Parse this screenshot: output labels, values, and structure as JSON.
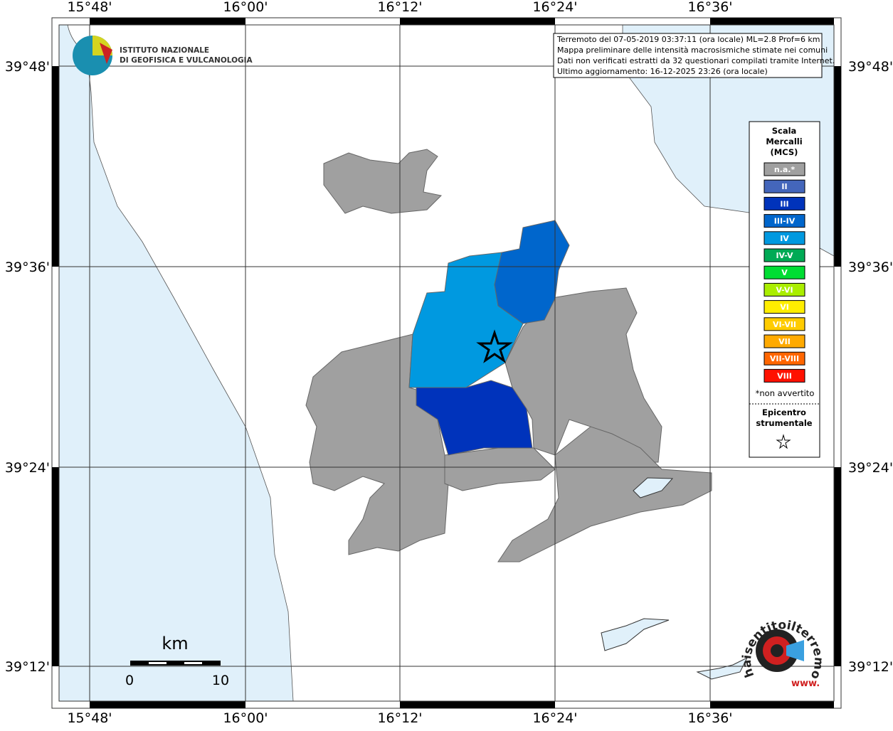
{
  "header": {
    "institute": [
      "ISTITUTO NAZIONALE",
      "DI GEOFISICA E VULCANOLOGIA"
    ],
    "info": [
      "Terremoto del 07-05-2019 03:37:11 (ora locale) ML=2.8 Prof=6 km",
      "Mappa preliminare delle intensità macrosismiche stimate nei comuni",
      "Dati non verificati estratti da 32 questionari compilati tramite Internet.",
      "Ultimo aggiornamento: 16-12-2025 23:26 (ora locale)"
    ]
  },
  "map": {
    "longitudes": [
      "15°48'",
      "16°00'",
      "16°12'",
      "16°24'",
      "16°36'"
    ],
    "latitudes": [
      "39°48'",
      "39°36'",
      "39°24'",
      "39°12'"
    ],
    "scale_bar": {
      "unit": "km",
      "labels": [
        "0",
        "10"
      ]
    }
  },
  "legend": {
    "title": [
      "Scala",
      "Mercalli",
      "(MCS)"
    ],
    "items": [
      {
        "label": "n.a.*",
        "color": "#a0a0a0"
      },
      {
        "label": "II",
        "color": "#4466bb"
      },
      {
        "label": "III",
        "color": "#0033bb"
      },
      {
        "label": "III-IV",
        "color": "#0066cc"
      },
      {
        "label": "IV",
        "color": "#0099e0"
      },
      {
        "label": "IV-V",
        "color": "#00aa55"
      },
      {
        "label": "V",
        "color": "#00dd33"
      },
      {
        "label": "V-VI",
        "color": "#aaee00"
      },
      {
        "label": "VI",
        "color": "#ffee00"
      },
      {
        "label": "VI-VII",
        "color": "#ffcc00"
      },
      {
        "label": "VII",
        "color": "#ffaa00"
      },
      {
        "label": "VII-VIII",
        "color": "#ff6600"
      },
      {
        "label": "VIII",
        "color": "#ff1100"
      }
    ],
    "note": "*non avvertito",
    "epicenter": [
      "Epicentro",
      "strumentale"
    ]
  },
  "logo": {
    "prefix": "www.",
    "text": "haisentitoilterremoto.it"
  }
}
